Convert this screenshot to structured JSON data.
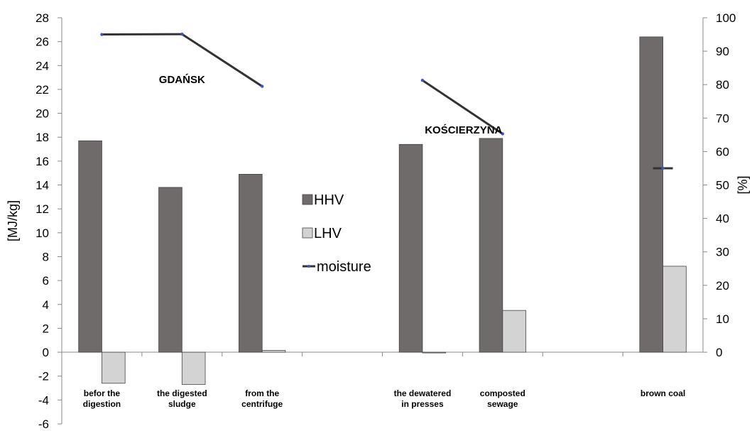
{
  "chart_data": {
    "type": "bar",
    "categories": [
      [
        "befor the",
        "digestion"
      ],
      [
        "the digested",
        "sludge"
      ],
      [
        "from the",
        "centrifuge"
      ],
      [
        "",
        ""
      ],
      [
        "the dewatered",
        "in presses"
      ],
      [
        "composted",
        "sewage"
      ],
      [
        "",
        ""
      ],
      [
        "brown coal",
        ""
      ]
    ],
    "series": [
      {
        "name": "HHV",
        "axis": "left",
        "kind": "bar",
        "color": "#6f6b6a",
        "values": [
          17.7,
          13.8,
          14.9,
          null,
          17.4,
          17.9,
          null,
          26.4
        ]
      },
      {
        "name": "LHV",
        "axis": "left",
        "kind": "bar",
        "color": "#d3d3d3",
        "values": [
          -2.6,
          -2.7,
          0.15,
          null,
          -0.05,
          3.5,
          null,
          7.2
        ]
      },
      {
        "name": "moisture",
        "axis": "right",
        "kind": "line",
        "color": "#333333",
        "values": [
          95,
          95.1,
          79.5,
          null,
          81.3,
          65.3,
          null,
          55
        ]
      }
    ],
    "group_labels": [
      {
        "text": "GDAŃSK",
        "category_index": 1
      },
      {
        "text": "KOŚCIERZYNA",
        "category_index": 5
      }
    ],
    "ylabel": "[MJ/kg]",
    "y2label": "[%]",
    "ylim": [
      -6,
      28
    ],
    "y_ticks": [
      -6,
      -4,
      -2,
      0,
      2,
      4,
      6,
      8,
      10,
      12,
      14,
      16,
      18,
      20,
      22,
      24,
      26,
      28
    ],
    "y2lim": [
      0,
      100
    ],
    "y2_ticks": [
      0,
      10,
      20,
      30,
      40,
      50,
      60,
      70,
      80,
      90,
      100
    ],
    "grid": false,
    "legend_position": "center"
  }
}
